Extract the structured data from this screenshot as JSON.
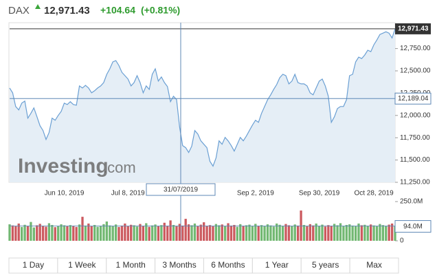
{
  "header": {
    "name": "DAX",
    "price": "12,971.43",
    "change": "+104.64",
    "change_pct": "(+0.81%)"
  },
  "watermark": {
    "brand": "Investing",
    "suffix": ".com"
  },
  "chart_data": [
    {
      "type": "line",
      "categories": [
        null,
        null,
        null,
        null,
        null,
        null,
        null,
        null,
        null,
        null,
        null,
        null,
        null,
        null,
        null,
        null,
        null,
        null,
        "Jun 10, 2019",
        null,
        null,
        null,
        null,
        null,
        null,
        null,
        null,
        null,
        null,
        null,
        null,
        null,
        null,
        null,
        null,
        null,
        null,
        null,
        null,
        "Jul 8, 2019",
        null,
        null,
        null,
        null,
        null,
        null,
        null,
        null,
        null,
        null,
        null,
        null,
        null,
        null,
        null,
        null,
        null,
        null,
        null,
        null,
        null,
        null,
        null,
        null,
        null,
        null,
        null,
        null,
        null,
        null,
        null,
        null,
        null,
        null,
        null,
        null,
        null,
        null,
        null,
        null,
        null,
        "Sep 2, 2019",
        null,
        null,
        null,
        null,
        null,
        null,
        null,
        null,
        null,
        null,
        null,
        null,
        null,
        null,
        null,
        null,
        null,
        null,
        null,
        null,
        "Sep 30, 2019",
        null,
        null,
        null,
        null,
        null,
        null,
        null,
        null,
        null,
        null,
        null,
        null,
        null,
        null,
        null,
        null,
        null,
        "Oct 28, 2019",
        null,
        null,
        null,
        null,
        null,
        null,
        null
      ],
      "values": [
        12308,
        12254,
        12100,
        12062,
        12138,
        12161,
        11969,
        12023,
        12085,
        11985,
        11885,
        11831,
        11731,
        11808,
        11969,
        11946,
        12000,
        12046,
        12138,
        12123,
        12154,
        12123,
        12115,
        12331,
        12308,
        12338,
        12308,
        12254,
        12277,
        12308,
        12331,
        12369,
        12461,
        12523,
        12600,
        12615,
        12561,
        12484,
        12446,
        12408,
        12331,
        12369,
        12446,
        12369,
        12254,
        12331,
        12292,
        12461,
        12523,
        12385,
        12431,
        12369,
        12323,
        12154,
        12215,
        12177,
        11869,
        11662,
        11639,
        11585,
        11654,
        11831,
        11792,
        11715,
        11677,
        11639,
        11485,
        11431,
        11523,
        11715,
        11677,
        11754,
        11715,
        11662,
        11600,
        11677,
        11754,
        11715,
        11769,
        11831,
        11892,
        11946,
        11923,
        12023,
        12100,
        12177,
        12231,
        12292,
        12346,
        12423,
        12461,
        12446,
        12354,
        12385,
        12461,
        12369,
        12354,
        12354,
        12331,
        12254,
        12231,
        12308,
        12385,
        12408,
        12331,
        12215,
        11923,
        11985,
        12077,
        12100,
        12100,
        12177,
        12446,
        12461,
        12600,
        12654,
        12638,
        12677,
        12731,
        12715,
        12792,
        12846,
        12908,
        12923,
        12938,
        12923,
        12869,
        12971.43
      ],
      "color": "#6a9fd3",
      "fill": "#e5eef6",
      "ylim": [
        11250,
        13040
      ],
      "yticks": [
        {
          "value": 11250,
          "label": "11,250.00"
        },
        {
          "value": 11500,
          "label": "11,500.00"
        },
        {
          "value": 11750,
          "label": "11,750.00"
        },
        {
          "value": 12000,
          "label": "12,000.00"
        },
        {
          "value": 12250,
          "label": "12,250.00"
        },
        {
          "value": 12500,
          "label": "12,500.00"
        },
        {
          "value": 12750,
          "label": "12,750.00"
        }
      ],
      "crosshair": {
        "date": "31/07/2019",
        "value": {
          "value": 12189.04,
          "label": "12,189.04"
        }
      }
    },
    {
      "type": "bar",
      "values": [
        105,
        98,
        92,
        110,
        88,
        102,
        95,
        120,
        85,
        99,
        108,
        96,
        90,
        112,
        101,
        87,
        94,
        105,
        99,
        92,
        100,
        96,
        88,
        104,
        153,
        97,
        110,
        93,
        101,
        89,
        95,
        106,
        123,
        98,
        92,
        104,
        88,
        97,
        110,
        94,
        102,
        99,
        91,
        107,
        95,
        112,
        89,
        98,
        104,
        93,
        100,
        115,
        96,
        130,
        101,
        92,
        108,
        97,
        140,
        105,
        99,
        110,
        94,
        103,
        118,
        96,
        100,
        92,
        107,
        99,
        104,
        93,
        112,
        97,
        101,
        89,
        106,
        95,
        99,
        103,
        92,
        108,
        96,
        100,
        94,
        105,
        98,
        91,
        110,
        102,
        95,
        107,
        99,
        93,
        104,
        97,
        193,
        101,
        92,
        106,
        98,
        110,
        95,
        103,
        91,
        100,
        96,
        108,
        99,
        112,
        94,
        101,
        105,
        97,
        93,
        110,
        99,
        102,
        96,
        104,
        98,
        92,
        107,
        100,
        95,
        103,
        110,
        94
      ],
      "up_color": "#72b872",
      "down_color": "#cc5a5f",
      "ylim": [
        0,
        250
      ],
      "yticks": [
        0,
        {
          "value": 250,
          "label": "250.0M"
        }
      ],
      "current": {
        "value": 94,
        "label": "94.0M"
      }
    }
  ],
  "range_buttons": [
    "1 Day",
    "1 Week",
    "1 Month",
    "3 Months",
    "6 Months",
    "1 Year",
    "5 years",
    "Max"
  ]
}
